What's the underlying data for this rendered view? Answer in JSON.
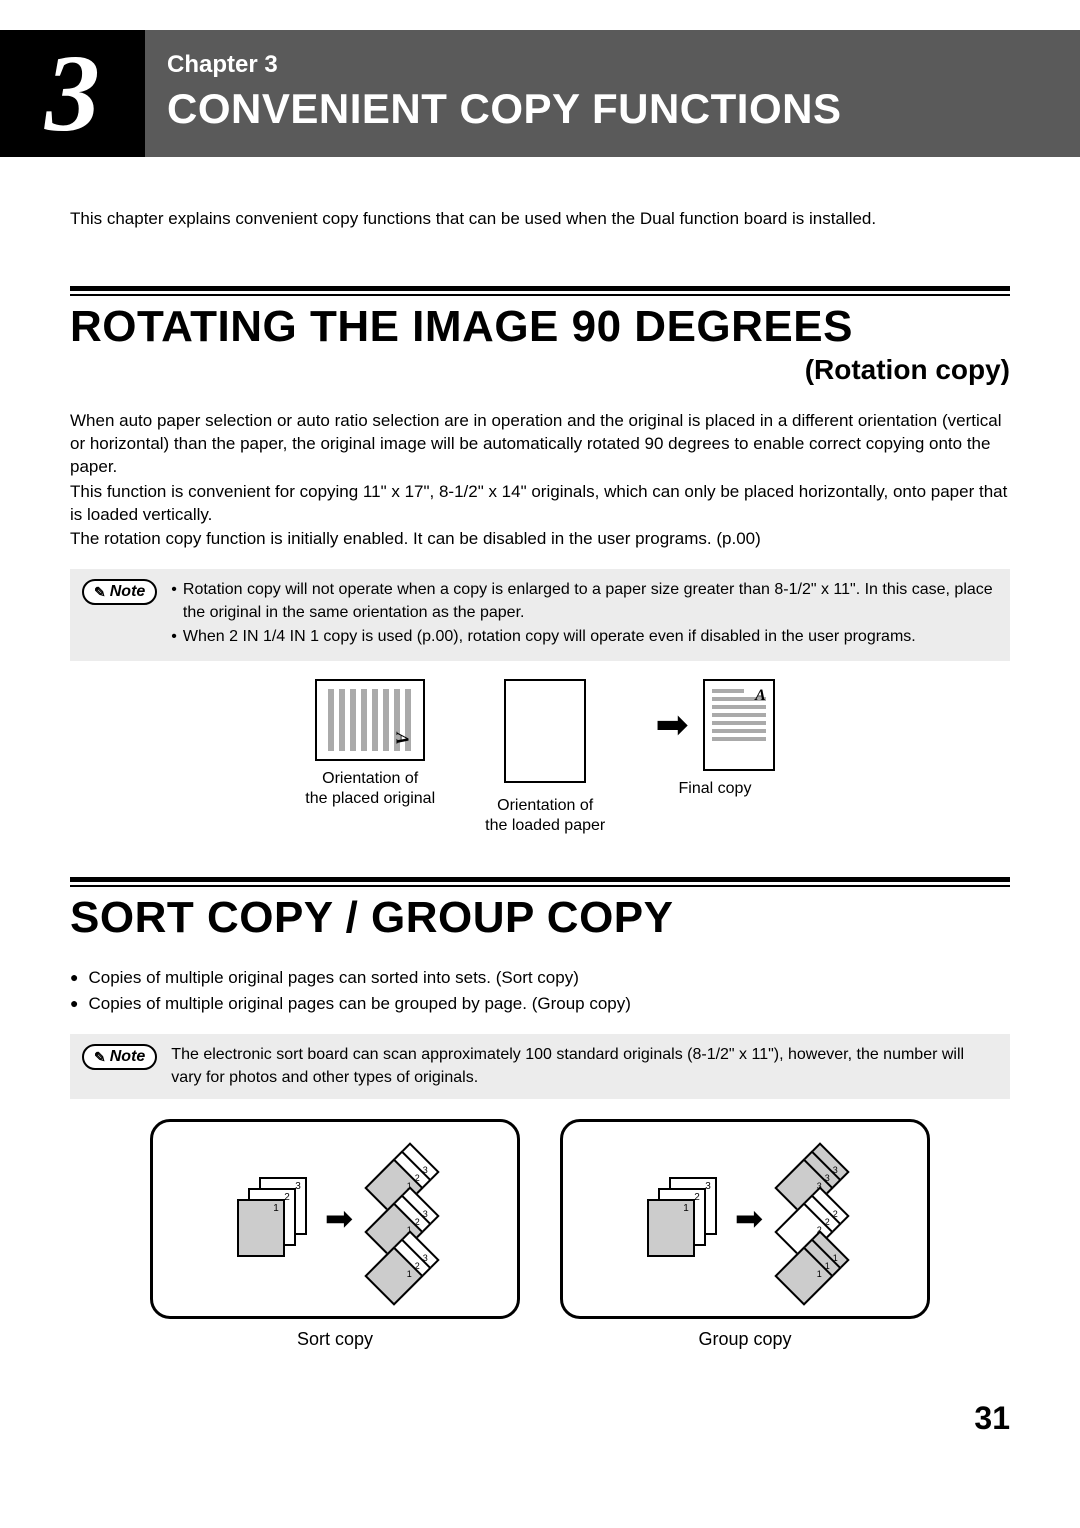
{
  "header": {
    "chapter_number": "3",
    "chapter_label": "Chapter 3",
    "chapter_title": "CONVENIENT COPY FUNCTIONS"
  },
  "intro": "This chapter explains convenient copy functions that can be used when the Dual function board is installed.",
  "section1": {
    "title": "ROTATING THE IMAGE 90 DEGREES",
    "subtitle": "(Rotation copy)",
    "paragraphs": [
      "When auto paper selection or auto ratio selection are in operation and the original is placed in a different orientation (vertical or horizontal) than the paper, the original image will be automatically rotated 90 degrees to enable correct copying onto the paper.",
      "This function is convenient for copying 11\" x 17\", 8-1/2\" x 14\" originals, which can only be placed horizontally, onto paper that is loaded vertically.",
      "The rotation copy function is initially enabled. It can be disabled in the user programs. (p.00)"
    ],
    "note_label": "Note",
    "notes": [
      "Rotation copy will not operate when a copy is enlarged to a paper size greater than 8-1/2\" x 11\". In this case, place the original in the same orientation as the paper.",
      "When 2 IN 1/4 IN 1 copy is used (p.00), rotation copy will operate even if disabled in the user programs."
    ],
    "diagram": {
      "label1": "Orientation of\nthe placed original",
      "label2": "Orientation of\nthe loaded paper",
      "label3": "Final copy"
    }
  },
  "section2": {
    "title": "SORT COPY / GROUP COPY",
    "bullets": [
      "Copies of multiple original pages can sorted into sets. (Sort copy)",
      "Copies of multiple original pages can be grouped by page. (Group copy)"
    ],
    "note_label": "Note",
    "note_text": "The electronic sort board can scan approximately 100 standard originals (8-1/2\" x 11\"), however, the number will vary for photos and other types of originals.",
    "sort_label": "Sort copy",
    "group_label": "Group copy",
    "colors": {
      "shaded": "#cccccc",
      "frame": "#000000",
      "note_bg": "#ececec"
    }
  },
  "page_number": "31"
}
